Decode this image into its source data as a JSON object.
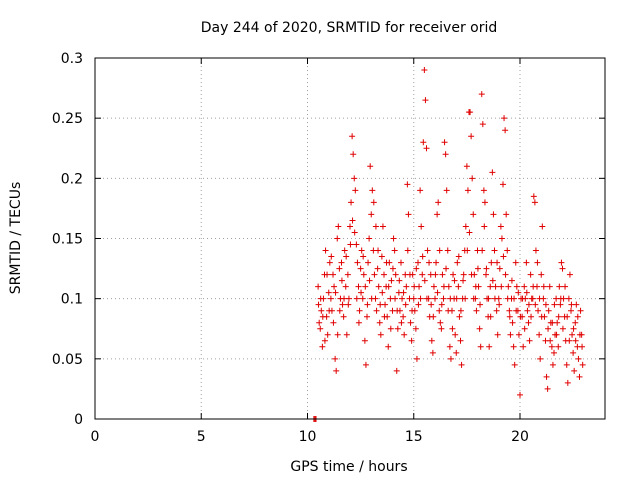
{
  "chart_data": {
    "type": "scatter",
    "title": "Day 244 of 2020, SRMTID for receiver orid",
    "xlabel": "GPS time / hours",
    "ylabel": "SRMTID / TECUs",
    "xlim": [
      0,
      24
    ],
    "ylim": [
      0,
      0.3
    ],
    "xticks": [
      0,
      5,
      10,
      15,
      20
    ],
    "xtick_labels": [
      "0",
      "5",
      "10",
      "15",
      "20"
    ],
    "yticks": [
      0,
      0.05,
      0.1,
      0.15,
      0.2,
      0.25,
      0.3
    ],
    "ytick_labels": [
      "0",
      "0.05",
      "0.1",
      "0.15",
      "0.2",
      "0.25",
      "0.3"
    ],
    "grid": true,
    "legend": "none",
    "marker": "plus",
    "color": "#e00000",
    "points": [
      [
        10.3,
        0.0
      ],
      [
        10.35,
        0.0
      ],
      [
        10.4,
        0.0
      ],
      [
        10.5,
        0.11
      ],
      [
        10.55,
        0.08
      ],
      [
        10.6,
        0.075
      ],
      [
        10.65,
        0.09
      ],
      [
        10.7,
        0.06
      ],
      [
        10.75,
        0.1
      ],
      [
        10.8,
        0.12
      ],
      [
        10.85,
        0.14
      ],
      [
        10.9,
        0.085
      ],
      [
        10.95,
        0.07
      ],
      [
        11.0,
        0.105
      ],
      [
        11.05,
        0.13
      ],
      [
        11.1,
        0.1
      ],
      [
        11.15,
        0.09
      ],
      [
        11.2,
        0.12
      ],
      [
        11.25,
        0.11
      ],
      [
        11.3,
        0.05
      ],
      [
        11.35,
        0.04
      ],
      [
        11.4,
        0.15
      ],
      [
        11.45,
        0.16
      ],
      [
        11.5,
        0.125
      ],
      [
        11.55,
        0.1
      ],
      [
        11.6,
        0.13
      ],
      [
        11.65,
        0.095
      ],
      [
        11.7,
        0.085
      ],
      [
        11.75,
        0.14
      ],
      [
        11.8,
        0.11
      ],
      [
        11.85,
        0.07
      ],
      [
        11.9,
        0.12
      ],
      [
        11.95,
        0.1
      ],
      [
        12.0,
        0.16
      ],
      [
        12.05,
        0.18
      ],
      [
        12.1,
        0.235
      ],
      [
        12.15,
        0.22
      ],
      [
        12.2,
        0.2
      ],
      [
        12.25,
        0.19
      ],
      [
        12.3,
        0.145
      ],
      [
        12.35,
        0.13
      ],
      [
        12.4,
        0.11
      ],
      [
        12.45,
        0.09
      ],
      [
        12.5,
        0.125
      ],
      [
        12.55,
        0.14
      ],
      [
        12.6,
        0.1
      ],
      [
        12.65,
        0.12
      ],
      [
        12.7,
        0.065
      ],
      [
        12.75,
        0.045
      ],
      [
        12.8,
        0.085
      ],
      [
        12.85,
        0.13
      ],
      [
        12.9,
        0.15
      ],
      [
        12.95,
        0.21
      ],
      [
        13.0,
        0.17
      ],
      [
        13.05,
        0.19
      ],
      [
        13.1,
        0.14
      ],
      [
        13.15,
        0.12
      ],
      [
        13.2,
        0.1
      ],
      [
        13.25,
        0.09
      ],
      [
        13.3,
        0.125
      ],
      [
        13.35,
        0.11
      ],
      [
        13.4,
        0.08
      ],
      [
        13.45,
        0.07
      ],
      [
        13.5,
        0.135
      ],
      [
        13.55,
        0.16
      ],
      [
        13.6,
        0.12
      ],
      [
        13.65,
        0.095
      ],
      [
        13.7,
        0.11
      ],
      [
        13.75,
        0.085
      ],
      [
        13.8,
        0.06
      ],
      [
        13.85,
        0.13
      ],
      [
        13.9,
        0.1
      ],
      [
        13.95,
        0.115
      ],
      [
        14.0,
        0.09
      ],
      [
        14.05,
        0.15
      ],
      [
        14.1,
        0.14
      ],
      [
        14.15,
        0.12
      ],
      [
        14.2,
        0.04
      ],
      [
        14.25,
        0.075
      ],
      [
        14.3,
        0.105
      ],
      [
        14.35,
        0.09
      ],
      [
        14.4,
        0.13
      ],
      [
        14.45,
        0.1
      ],
      [
        14.5,
        0.085
      ],
      [
        14.55,
        0.07
      ],
      [
        14.6,
        0.12
      ],
      [
        14.65,
        0.11
      ],
      [
        14.7,
        0.195
      ],
      [
        14.75,
        0.17
      ],
      [
        14.8,
        0.1
      ],
      [
        14.85,
        0.08
      ],
      [
        14.9,
        0.065
      ],
      [
        14.95,
        0.12
      ],
      [
        15.0,
        0.1
      ],
      [
        15.05,
        0.09
      ],
      [
        15.1,
        0.075
      ],
      [
        15.15,
        0.05
      ],
      [
        15.2,
        0.13
      ],
      [
        15.25,
        0.11
      ],
      [
        15.3,
        0.19
      ],
      [
        15.35,
        0.16
      ],
      [
        15.4,
        0.12
      ],
      [
        15.45,
        0.23
      ],
      [
        15.5,
        0.29
      ],
      [
        15.55,
        0.265
      ],
      [
        15.6,
        0.225
      ],
      [
        15.65,
        0.14
      ],
      [
        15.7,
        0.1
      ],
      [
        15.75,
        0.085
      ],
      [
        15.8,
        0.12
      ],
      [
        15.85,
        0.065
      ],
      [
        15.9,
        0.055
      ],
      [
        15.95,
        0.11
      ],
      [
        16.0,
        0.1
      ],
      [
        16.05,
        0.13
      ],
      [
        16.1,
        0.17
      ],
      [
        16.15,
        0.18
      ],
      [
        16.2,
        0.09
      ],
      [
        16.25,
        0.08
      ],
      [
        16.3,
        0.075
      ],
      [
        16.35,
        0.12
      ],
      [
        16.4,
        0.1
      ],
      [
        16.45,
        0.23
      ],
      [
        16.5,
        0.22
      ],
      [
        16.55,
        0.19
      ],
      [
        16.6,
        0.14
      ],
      [
        16.65,
        0.11
      ],
      [
        16.7,
        0.06
      ],
      [
        16.75,
        0.05
      ],
      [
        16.8,
        0.09
      ],
      [
        16.85,
        0.12
      ],
      [
        16.9,
        0.1
      ],
      [
        16.95,
        0.07
      ],
      [
        17.0,
        0.055
      ],
      [
        17.05,
        0.13
      ],
      [
        17.1,
        0.11
      ],
      [
        17.15,
        0.085
      ],
      [
        17.2,
        0.065
      ],
      [
        17.25,
        0.045
      ],
      [
        17.3,
        0.1
      ],
      [
        17.35,
        0.12
      ],
      [
        17.4,
        0.14
      ],
      [
        17.45,
        0.16
      ],
      [
        17.5,
        0.21
      ],
      [
        17.55,
        0.19
      ],
      [
        17.6,
        0.255
      ],
      [
        17.65,
        0.255
      ],
      [
        17.7,
        0.235
      ],
      [
        17.75,
        0.2
      ],
      [
        17.8,
        0.17
      ],
      [
        17.85,
        0.12
      ],
      [
        17.9,
        0.1
      ],
      [
        17.95,
        0.09
      ],
      [
        18.0,
        0.14
      ],
      [
        18.05,
        0.11
      ],
      [
        18.1,
        0.075
      ],
      [
        18.15,
        0.06
      ],
      [
        18.2,
        0.27
      ],
      [
        18.25,
        0.245
      ],
      [
        18.3,
        0.19
      ],
      [
        18.35,
        0.18
      ],
      [
        18.4,
        0.12
      ],
      [
        18.45,
        0.1
      ],
      [
        18.5,
        0.085
      ],
      [
        18.55,
        0.06
      ],
      [
        18.6,
        0.11
      ],
      [
        18.65,
        0.13
      ],
      [
        18.7,
        0.205
      ],
      [
        18.75,
        0.17
      ],
      [
        18.8,
        0.14
      ],
      [
        18.85,
        0.11
      ],
      [
        18.9,
        0.09
      ],
      [
        18.95,
        0.07
      ],
      [
        19.0,
        0.1
      ],
      [
        19.05,
        0.125
      ],
      [
        19.1,
        0.16
      ],
      [
        19.15,
        0.15
      ],
      [
        19.2,
        0.195
      ],
      [
        19.25,
        0.25
      ],
      [
        19.3,
        0.24
      ],
      [
        19.35,
        0.17
      ],
      [
        19.4,
        0.14
      ],
      [
        19.45,
        0.11
      ],
      [
        19.5,
        0.09
      ],
      [
        19.55,
        0.07
      ],
      [
        19.6,
        0.1
      ],
      [
        19.65,
        0.08
      ],
      [
        19.7,
        0.06
      ],
      [
        19.75,
        0.045
      ],
      [
        19.8,
        0.13
      ],
      [
        19.85,
        0.11
      ],
      [
        19.9,
        0.09
      ],
      [
        19.95,
        0.07
      ],
      [
        20.0,
        0.02
      ],
      [
        20.05,
        0.1
      ],
      [
        20.1,
        0.085
      ],
      [
        20.15,
        0.06
      ],
      [
        20.2,
        0.11
      ],
      [
        20.25,
        0.1
      ],
      [
        20.3,
        0.13
      ],
      [
        20.35,
        0.09
      ],
      [
        20.4,
        0.08
      ],
      [
        20.45,
        0.065
      ],
      [
        20.5,
        0.12
      ],
      [
        20.55,
        0.1
      ],
      [
        20.6,
        0.1
      ],
      [
        20.65,
        0.185
      ],
      [
        20.7,
        0.18
      ],
      [
        20.75,
        0.14
      ],
      [
        20.8,
        0.11
      ],
      [
        20.85,
        0.09
      ],
      [
        20.9,
        0.07
      ],
      [
        20.95,
        0.05
      ],
      [
        21.0,
        0.12
      ],
      [
        21.05,
        0.16
      ],
      [
        21.1,
        0.1
      ],
      [
        21.15,
        0.085
      ],
      [
        21.2,
        0.065
      ],
      [
        21.25,
        0.035
      ],
      [
        21.3,
        0.025
      ],
      [
        21.35,
        0.09
      ],
      [
        21.4,
        0.11
      ],
      [
        21.45,
        0.08
      ],
      [
        21.5,
        0.06
      ],
      [
        21.55,
        0.045
      ],
      [
        21.6,
        0.055
      ],
      [
        21.65,
        0.07
      ],
      [
        21.7,
        0.1
      ],
      [
        21.75,
        0.08
      ],
      [
        21.8,
        0.06
      ],
      [
        21.85,
        0.11
      ],
      [
        21.9,
        0.095
      ],
      [
        21.95,
        0.13
      ],
      [
        22.0,
        0.125
      ],
      [
        22.05,
        0.1
      ],
      [
        22.1,
        0.085
      ],
      [
        22.15,
        0.065
      ],
      [
        22.2,
        0.045
      ],
      [
        22.25,
        0.03
      ],
      [
        22.3,
        0.1
      ],
      [
        22.35,
        0.12
      ],
      [
        22.4,
        0.09
      ],
      [
        22.45,
        0.07
      ],
      [
        22.5,
        0.055
      ],
      [
        22.55,
        0.04
      ],
      [
        22.6,
        0.08
      ],
      [
        22.65,
        0.095
      ],
      [
        22.7,
        0.06
      ],
      [
        22.75,
        0.05
      ],
      [
        22.8,
        0.035
      ],
      [
        22.85,
        0.09
      ],
      [
        22.9,
        0.07
      ],
      [
        22.95,
        0.045
      ],
      [
        10.52,
        0.095
      ],
      [
        10.62,
        0.1
      ],
      [
        10.72,
        0.085
      ],
      [
        10.82,
        0.065
      ],
      [
        10.92,
        0.12
      ],
      [
        11.02,
        0.09
      ],
      [
        11.12,
        0.135
      ],
      [
        11.22,
        0.08
      ],
      [
        11.32,
        0.105
      ],
      [
        11.42,
        0.07
      ],
      [
        11.52,
        0.09
      ],
      [
        11.62,
        0.115
      ],
      [
        11.72,
        0.1
      ],
      [
        11.82,
        0.135
      ],
      [
        11.92,
        0.095
      ],
      [
        12.02,
        0.145
      ],
      [
        12.12,
        0.165
      ],
      [
        12.22,
        0.155
      ],
      [
        12.32,
        0.1
      ],
      [
        12.42,
        0.08
      ],
      [
        12.52,
        0.105
      ],
      [
        12.62,
        0.135
      ],
      [
        12.72,
        0.11
      ],
      [
        12.82,
        0.095
      ],
      [
        12.92,
        0.115
      ],
      [
        13.02,
        0.1
      ],
      [
        13.12,
        0.18
      ],
      [
        13.22,
        0.16
      ],
      [
        13.32,
        0.14
      ],
      [
        13.42,
        0.095
      ],
      [
        13.52,
        0.105
      ],
      [
        13.62,
        0.085
      ],
      [
        13.72,
        0.13
      ],
      [
        13.82,
        0.11
      ],
      [
        13.92,
        0.075
      ],
      [
        14.02,
        0.125
      ],
      [
        14.12,
        0.1
      ],
      [
        14.22,
        0.09
      ],
      [
        14.32,
        0.115
      ],
      [
        14.42,
        0.08
      ],
      [
        14.52,
        0.105
      ],
      [
        14.62,
        0.095
      ],
      [
        14.72,
        0.14
      ],
      [
        14.82,
        0.12
      ],
      [
        14.92,
        0.09
      ],
      [
        15.02,
        0.11
      ],
      [
        15.12,
        0.125
      ],
      [
        15.22,
        0.095
      ],
      [
        15.32,
        0.1
      ],
      [
        15.42,
        0.135
      ],
      [
        15.52,
        0.115
      ],
      [
        15.62,
        0.1
      ],
      [
        15.72,
        0.13
      ],
      [
        15.82,
        0.095
      ],
      [
        15.92,
        0.085
      ],
      [
        16.02,
        0.12
      ],
      [
        16.12,
        0.105
      ],
      [
        16.22,
        0.14
      ],
      [
        16.32,
        0.095
      ],
      [
        16.42,
        0.11
      ],
      [
        16.52,
        0.125
      ],
      [
        16.62,
        0.09
      ],
      [
        16.72,
        0.1
      ],
      [
        16.82,
        0.075
      ],
      [
        16.92,
        0.115
      ],
      [
        17.02,
        0.1
      ],
      [
        17.12,
        0.135
      ],
      [
        17.22,
        0.09
      ],
      [
        17.32,
        0.115
      ],
      [
        17.42,
        0.1
      ],
      [
        17.52,
        0.14
      ],
      [
        17.62,
        0.155
      ],
      [
        17.72,
        0.12
      ],
      [
        17.82,
        0.1
      ],
      [
        17.92,
        0.11
      ],
      [
        18.02,
        0.125
      ],
      [
        18.12,
        0.095
      ],
      [
        18.22,
        0.14
      ],
      [
        18.32,
        0.16
      ],
      [
        18.42,
        0.125
      ],
      [
        18.52,
        0.1
      ],
      [
        18.62,
        0.085
      ],
      [
        18.72,
        0.115
      ],
      [
        18.82,
        0.1
      ],
      [
        18.92,
        0.13
      ],
      [
        19.02,
        0.095
      ],
      [
        19.12,
        0.11
      ],
      [
        19.22,
        0.135
      ],
      [
        19.32,
        0.12
      ],
      [
        19.42,
        0.1
      ],
      [
        19.52,
        0.085
      ],
      [
        19.62,
        0.115
      ],
      [
        19.72,
        0.1
      ],
      [
        19.82,
        0.09
      ],
      [
        19.92,
        0.105
      ],
      [
        20.02,
        0.085
      ],
      [
        20.12,
        0.1
      ],
      [
        20.22,
        0.075
      ],
      [
        20.32,
        0.105
      ],
      [
        20.42,
        0.095
      ],
      [
        20.52,
        0.085
      ],
      [
        20.62,
        0.11
      ],
      [
        20.72,
        0.095
      ],
      [
        20.82,
        0.13
      ],
      [
        20.92,
        0.1
      ],
      [
        21.02,
        0.085
      ],
      [
        21.12,
        0.11
      ],
      [
        21.22,
        0.095
      ],
      [
        21.32,
        0.075
      ],
      [
        21.42,
        0.065
      ],
      [
        21.52,
        0.08
      ],
      [
        21.62,
        0.095
      ],
      [
        21.72,
        0.07
      ],
      [
        21.82,
        0.085
      ],
      [
        21.92,
        0.1
      ],
      [
        22.02,
        0.075
      ],
      [
        22.12,
        0.11
      ],
      [
        22.22,
        0.085
      ],
      [
        22.32,
        0.065
      ],
      [
        22.42,
        0.095
      ],
      [
        22.52,
        0.075
      ],
      [
        22.62,
        0.065
      ],
      [
        22.72,
        0.085
      ],
      [
        22.82,
        0.07
      ],
      [
        22.92,
        0.06
      ]
    ]
  }
}
